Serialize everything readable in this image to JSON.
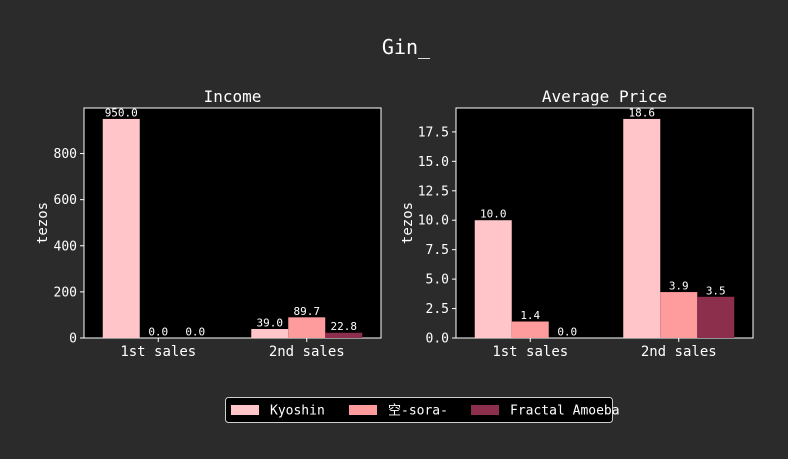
{
  "figure": {
    "suptitle": "Gin_"
  },
  "chart_data": [
    {
      "type": "bar",
      "title": "Income",
      "xlabel": "",
      "ylabel": "tezos",
      "categories": [
        "1st sales",
        "2nd sales"
      ],
      "ylim": [
        0,
        997.5
      ],
      "yticks": [
        0,
        200,
        400,
        600,
        800
      ],
      "series": [
        {
          "name": "Kyoshin",
          "values": [
            950.0,
            39.0
          ],
          "labels": [
            "950.0",
            "39.0"
          ]
        },
        {
          "name": "空-sora-",
          "values": [
            0.0,
            89.7
          ],
          "labels": [
            "0.0",
            "89.7"
          ]
        },
        {
          "name": "Fractal Amoeba",
          "values": [
            0.0,
            22.8
          ],
          "labels": [
            "0.0",
            "22.8"
          ]
        }
      ]
    },
    {
      "type": "bar",
      "title": "Average Price",
      "xlabel": "",
      "ylabel": "tezos",
      "categories": [
        "1st sales",
        "2nd sales"
      ],
      "ylim": [
        0,
        19.53
      ],
      "yticks": [
        0.0,
        2.5,
        5.0,
        7.5,
        10.0,
        12.5,
        15.0,
        17.5
      ],
      "series": [
        {
          "name": "Kyoshin",
          "values": [
            10.0,
            18.6
          ],
          "labels": [
            "10.0",
            "18.6"
          ]
        },
        {
          "name": "空-sora-",
          "values": [
            1.4,
            3.9
          ],
          "labels": [
            "1.4",
            "3.9"
          ]
        },
        {
          "name": "Fractal Amoeba",
          "values": [
            0.0,
            3.5
          ],
          "labels": [
            "0.0",
            "3.5"
          ]
        }
      ]
    }
  ],
  "legend": {
    "placement": "bottom-center",
    "entries": [
      "Kyoshin",
      "空-sora-",
      "Fractal Amoeba"
    ]
  },
  "colors": {
    "figure_bg": "#2b2b2b",
    "axes_bg": "#000000",
    "text": "#ffffff",
    "series": [
      "#ffc5c8",
      "#fe9b9d",
      "#8b2f4c"
    ]
  }
}
